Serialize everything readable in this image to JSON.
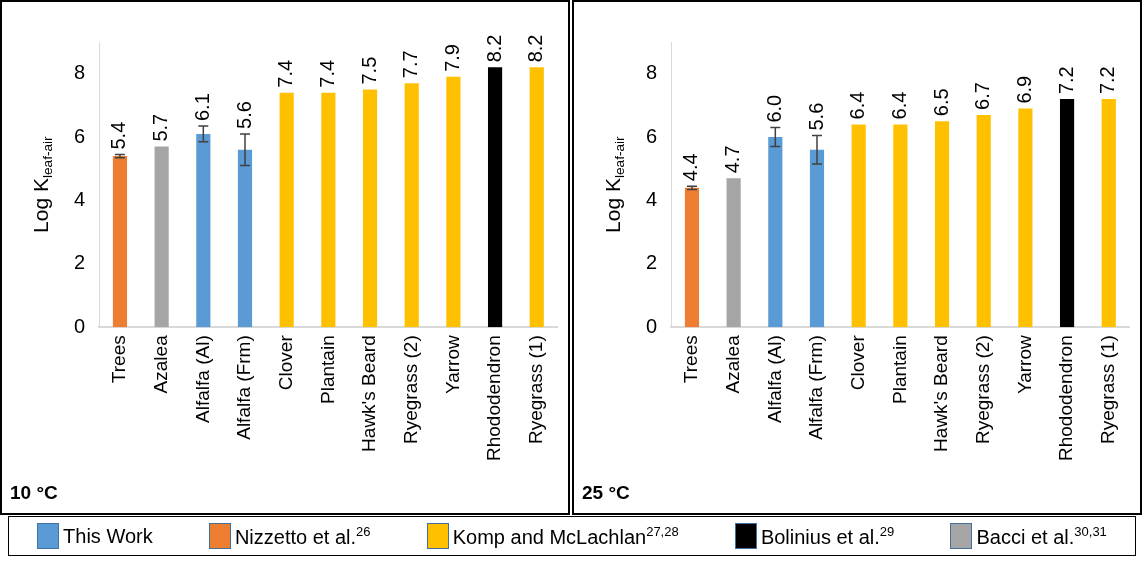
{
  "chart_data": [
    {
      "type": "bar",
      "ylabel": "Log K$_{leaf-air}$",
      "categories": [
        "Trees",
        "Azalea",
        "Alfalfa (Al)",
        "Alfalfa (Frm)",
        "Clover",
        "Plantain",
        "Hawk's Beard",
        "Ryegrass (2)",
        "Yarrow",
        "Rhododendron",
        "Ryegrass (1)"
      ],
      "series": [
        {
          "name": "This Work",
          "color": "#5b9bd5",
          "values": [
            null,
            null,
            6.1,
            5.6,
            null,
            null,
            null,
            null,
            null,
            null,
            null
          ],
          "value_labels": [
            null,
            null,
            "6.1",
            "5.6",
            null,
            null,
            null,
            null,
            null,
            null,
            null
          ],
          "errors": [
            null,
            null,
            0.25,
            0.5,
            null,
            null,
            null,
            null,
            null,
            null,
            null
          ]
        },
        {
          "name": "Nizzetto et al.$^{26}$",
          "color": "#ed7d31",
          "values": [
            5.4,
            null,
            null,
            null,
            null,
            null,
            null,
            null,
            null,
            null,
            null
          ],
          "value_labels": [
            "5.4",
            null,
            null,
            null,
            null,
            null,
            null,
            null,
            null,
            null,
            null
          ],
          "errors": [
            0.05,
            null,
            null,
            null,
            null,
            null,
            null,
            null,
            null,
            null,
            null
          ]
        },
        {
          "name": "Komp and McLachlan$^{27,28}$",
          "color": "#ffc000",
          "values": [
            null,
            null,
            null,
            null,
            7.4,
            7.4,
            7.5,
            7.7,
            7.9,
            null,
            8.2
          ],
          "value_labels": [
            null,
            null,
            null,
            null,
            "7.4",
            "7.4",
            "7.5",
            "7.7",
            "7.9",
            null,
            "8.2"
          ]
        },
        {
          "name": "Bolinius et al.$^{29}$",
          "color": "#000000",
          "values": [
            null,
            null,
            null,
            null,
            null,
            null,
            null,
            null,
            null,
            8.2,
            null
          ],
          "value_labels": [
            null,
            null,
            null,
            null,
            null,
            null,
            null,
            null,
            null,
            "8.2",
            null
          ]
        },
        {
          "name": "Bacci et al.$^{30,31}$",
          "color": "#a5a5a5",
          "values": [
            null,
            5.7,
            null,
            null,
            null,
            null,
            null,
            null,
            null,
            null,
            null
          ],
          "value_labels": [
            null,
            "5.7",
            null,
            null,
            null,
            null,
            null,
            null,
            null,
            null,
            null
          ]
        }
      ],
      "ylim": [
        0,
        9
      ],
      "yticks": [
        0,
        2,
        4,
        6,
        8
      ],
      "grid": false,
      "legend": "bottom",
      "annotations": [
        "10 °C"
      ]
    },
    {
      "type": "bar",
      "ylabel": "Log K$_{leaf-air}$",
      "categories": [
        "Trees",
        "Azalea",
        "Alfalfa (Al)",
        "Alfalfa (Frm)",
        "Clover",
        "Plantain",
        "Hawk's Beard",
        "Ryegrass (2)",
        "Yarrow",
        "Rhododendron",
        "Ryegrass (1)"
      ],
      "series": [
        {
          "color": "#5b9bd5",
          "values": [
            null,
            null,
            6.0,
            5.6,
            null,
            null,
            null,
            null,
            null,
            null,
            null
          ],
          "value_labels": [
            null,
            null,
            "6.0",
            "5.6",
            null,
            null,
            null,
            null,
            null,
            null,
            null
          ],
          "errors": [
            null,
            null,
            0.3,
            0.45,
            null,
            null,
            null,
            null,
            null,
            null,
            null
          ]
        },
        {
          "color": "#ed7d31",
          "values": [
            4.4,
            null,
            null,
            null,
            null,
            null,
            null,
            null,
            null,
            null,
            null
          ],
          "value_labels": [
            "4.4",
            null,
            null,
            null,
            null,
            null,
            null,
            null,
            null,
            null,
            null
          ],
          "errors": [
            0.05,
            null,
            null,
            null,
            null,
            null,
            null,
            null,
            null,
            null,
            null
          ]
        },
        {
          "color": "#ffc000",
          "values": [
            null,
            null,
            null,
            null,
            6.4,
            6.4,
            6.5,
            6.7,
            6.9,
            null,
            7.2
          ],
          "value_labels": [
            null,
            null,
            null,
            null,
            "6.4",
            "6.4",
            "6.5",
            "6.7",
            "6.9",
            null,
            "7.2"
          ]
        },
        {
          "color": "#000000",
          "values": [
            null,
            null,
            null,
            null,
            null,
            null,
            null,
            null,
            null,
            7.2,
            null
          ],
          "value_labels": [
            null,
            null,
            null,
            null,
            null,
            null,
            null,
            null,
            null,
            "7.2",
            null
          ]
        },
        {
          "color": "#a5a5a5",
          "values": [
            null,
            4.7,
            null,
            null,
            null,
            null,
            null,
            null,
            null,
            null,
            null
          ],
          "value_labels": [
            null,
            "4.7",
            null,
            null,
            null,
            null,
            null,
            null,
            null,
            null,
            null
          ]
        }
      ],
      "ylim": [
        0,
        9
      ],
      "yticks": [
        0,
        2,
        4,
        6,
        8
      ],
      "grid": false,
      "annotations": [
        "25 °C"
      ]
    }
  ]
}
